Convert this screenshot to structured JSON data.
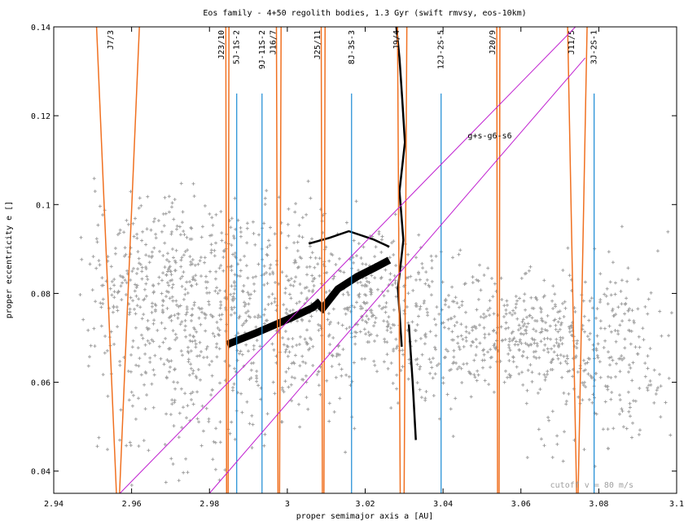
{
  "chart_data": {
    "type": "scatter",
    "title": "Eos family - 4+50 regolith bodies, 1.3 Gyr (swift rmvsy, eos-10km)",
    "xlabel": "proper semimajor axis a [AU]",
    "ylabel": "proper eccentricity e []",
    "xlim": [
      2.94,
      3.1
    ],
    "ylim": [
      0.035,
      0.14
    ],
    "xticks": [
      "2.94",
      "2.96",
      "2.98",
      "3",
      "3.02",
      "3.04",
      "3.06",
      "3.08",
      "3.1"
    ],
    "yticks": [
      "0.04",
      "0.06",
      "0.08",
      "0.1",
      "0.12",
      "0.14"
    ],
    "grid": false,
    "annotation": "cutoff v = 80 m/s",
    "colors": {
      "points": "#a0a0a0",
      "resonance": "#f07020",
      "three_body": "#1a8ad4",
      "secular": "#c020d0",
      "tracks": "#000000"
    },
    "resonances_two_body": [
      {
        "label": "J7/3",
        "a": 2.9565,
        "e_top": 0.14,
        "half_width_top": 0.0055,
        "half_width_bottom": 0.0004
      },
      {
        "label": "J23/10",
        "a": 2.9846,
        "e_top": 0.14,
        "half_width_top": 0.0004,
        "half_width_bottom": 0.0002
      },
      {
        "label": "J16/7",
        "a": 2.9978,
        "e_top": 0.14,
        "half_width_top": 0.0006,
        "half_width_bottom": 0.0002
      },
      {
        "label": "J25/11",
        "a": 3.0092,
        "e_top": 0.14,
        "half_width_top": 0.0005,
        "half_width_bottom": 0.0002
      },
      {
        "label": "J9/4",
        "a": 3.0295,
        "e_top": 0.14,
        "half_width_top": 0.0012,
        "half_width_bottom": 0.0005
      },
      {
        "label": "J20/9",
        "a": 3.0542,
        "e_top": 0.14,
        "half_width_top": 0.0004,
        "half_width_bottom": 0.0002
      },
      {
        "label": "J11/5",
        "a": 3.0745,
        "e_top": 0.14,
        "half_width_top": 0.0025,
        "half_width_bottom": 0.0002
      }
    ],
    "resonances_three_body": [
      {
        "label": "5J-1S-2",
        "a": 2.987,
        "e_top": 0.125
      },
      {
        "label": "9J-11S-2",
        "a": 2.9935,
        "e_top": 0.125
      },
      {
        "label": "8J-3S-3",
        "a": 3.0165,
        "e_top": 0.125
      },
      {
        "label": "12J-2S-5",
        "a": 3.0395,
        "e_top": 0.125
      },
      {
        "label": "3J-2S-1",
        "a": 3.0788,
        "e_top": 0.125
      }
    ],
    "secular_resonance": {
      "label": "g+s-g6-s6",
      "lines": [
        {
          "a": [
            2.957,
            3.074
          ],
          "e": [
            0.035,
            0.14
          ]
        },
        {
          "a": [
            2.98,
            3.0765
          ],
          "e": [
            0.035,
            0.133
          ]
        }
      ]
    },
    "tracks": [
      {
        "a": [
          2.9845,
          2.9925,
          3.001,
          3.0065,
          3.0085
        ],
        "e": [
          0.0685,
          0.0713,
          0.0745,
          0.0768,
          0.0782
        ]
      },
      {
        "a": [
          3.0085,
          3.013,
          3.018,
          3.0225,
          3.0262
        ],
        "e": [
          0.076,
          0.081,
          0.0838,
          0.0858,
          0.0875
        ]
      },
      {
        "a": [
          3.0055,
          3.0108,
          3.0158,
          3.022,
          3.0262
        ],
        "e": [
          0.0912,
          0.0925,
          0.094,
          0.0922,
          0.0905
        ]
      },
      {
        "a": [
          3.028,
          3.0288,
          3.0295,
          3.0302,
          3.0288,
          3.0298,
          3.0284,
          3.0294
        ],
        "e": [
          0.14,
          0.133,
          0.124,
          0.114,
          0.103,
          0.092,
          0.081,
          0.068
        ]
      },
      {
        "a": [
          3.0312,
          3.0322,
          3.033
        ],
        "e": [
          0.073,
          0.06,
          0.047
        ]
      }
    ]
  }
}
